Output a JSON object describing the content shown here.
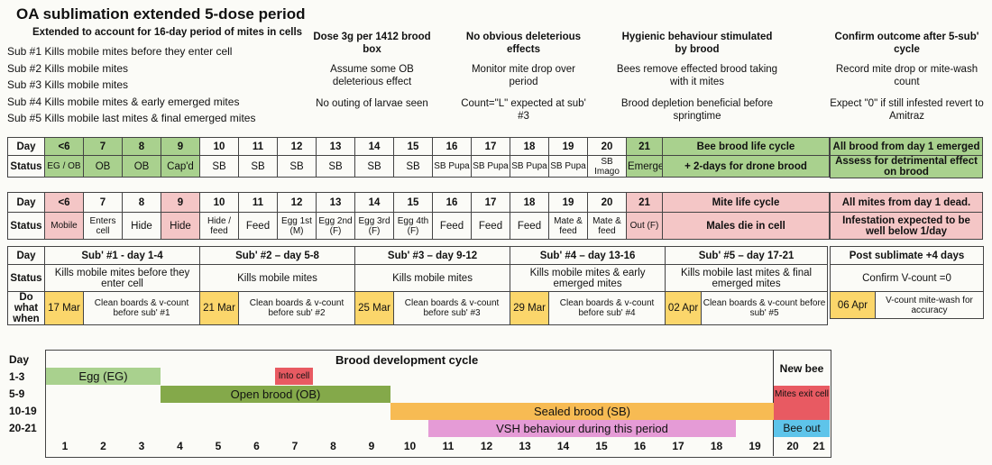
{
  "header": {
    "title": "OA sublimation extended 5-dose period",
    "subtitle": "Extended to account for 16-day period of mites in cells",
    "subs": [
      "Sub #1  Kills mobile mites before they enter cell",
      "Sub #2  Kills mobile mites",
      "Sub #3  Kills mobile mites",
      "Sub #4  Kills mobile mites & early emerged mites",
      "Sub #5  Kills mobile last mites & final emerged mites"
    ]
  },
  "notes": [
    {
      "heading": "Dose 3g per 1412 brood box",
      "lines": [
        "Assume some OB deleterious effect",
        "No outing of larvae seen"
      ]
    },
    {
      "heading": "No obvious deleterious effects",
      "lines": [
        "Monitor mite drop over period",
        "Count=\"L\" expected at sub' #3"
      ]
    },
    {
      "heading": "Hygienic behaviour stimulated by brood",
      "lines": [
        "Bees remove effected brood taking with it mites",
        "Brood depletion beneficial before springtime"
      ]
    },
    {
      "heading": "Confirm outcome after 5-sub' cycle",
      "lines": [
        "Record mite drop or mite-wash count",
        "Expect \"0\" if still infested revert to Amitraz"
      ]
    }
  ],
  "table1": {
    "day_label": "Day",
    "status_label": "Status",
    "days": [
      "<6",
      "7",
      "8",
      "9",
      "10",
      "11",
      "12",
      "13",
      "14",
      "15",
      "16",
      "17",
      "18",
      "19",
      "20",
      "21"
    ],
    "status": [
      "EG / OB",
      "OB",
      "OB",
      "Cap'd",
      "SB",
      "SB",
      "SB",
      "SB",
      "SB",
      "SB",
      "SB Pupa",
      "SB Pupa",
      "SB Pupa",
      "SB Pupa",
      "SB Imago",
      "Emerge"
    ],
    "right_title": "Bee brood life cycle",
    "right_sub": "+ 2-days for drone brood",
    "side_line1": "All brood from day 1 emerged",
    "side_line2": "Assess for detrimental effect on brood"
  },
  "table2": {
    "day_label": "Day",
    "status_label": "Status",
    "days": [
      "<6",
      "7",
      "8",
      "9",
      "10",
      "11",
      "12",
      "13",
      "14",
      "15",
      "16",
      "17",
      "18",
      "19",
      "20",
      "21"
    ],
    "status": [
      "Mobile",
      "Enters cell",
      "Hide",
      "Hide",
      "Hide / feed",
      "Feed",
      "Egg 1st (M)",
      "Egg 2nd (F)",
      "Egg 3rd (F)",
      "Egg 4th (F)",
      "Feed",
      "Feed",
      "Feed",
      "Mate & feed",
      "Mate & feed",
      "Out (F)"
    ],
    "right_title": "Mite life cycle",
    "right_sub": "Males die in cell",
    "side_line1": "All mites from day 1 dead.",
    "side_line2": "Infestation expected to be well below 1/day"
  },
  "table3": {
    "day_label": "Day",
    "status_label": "Status",
    "when_label": "Do what when",
    "subs": [
      {
        "day": "Sub' #1 - day 1-4",
        "status": "Kills mobile mites before they enter cell",
        "date": "17 Mar",
        "action": "Clean boards & v-count before sub' #1"
      },
      {
        "day": "Sub' #2 – day 5-8",
        "status": "Kills mobile mites",
        "date": "21 Mar",
        "action": "Clean boards & v-count before sub' #2"
      },
      {
        "day": "Sub' #3 – day 9-12",
        "status": "Kills mobile mites",
        "date": "25 Mar",
        "action": "Clean boards & v-count before sub' #3"
      },
      {
        "day": "Sub' #4 – day 13-16",
        "status": "Kills mobile mites & early emerged mites",
        "date": "29 Mar",
        "action": "Clean boards & v-count before sub' #4"
      },
      {
        "day": "Sub' #5 – day 17-21",
        "status": "Kills mobile last mites & final emerged mites",
        "date": "02 Apr",
        "action": "Clean boards & v-count before sub' #5"
      }
    ],
    "side": {
      "day": "Post sublimate +4 days",
      "status": "Confirm V-count =0",
      "date": "06 Apr",
      "action": "V-count mite-wash for accuracy"
    }
  },
  "brood": {
    "title": "Brood development cycle",
    "new_bee": "New bee",
    "day_label": "Day",
    "rows": [
      "1-3",
      "5-9",
      "10-19",
      "20-21"
    ],
    "axis": [
      "1",
      "2",
      "3",
      "4",
      "5",
      "6",
      "7",
      "8",
      "9",
      "10",
      "11",
      "12",
      "13",
      "14",
      "15",
      "16",
      "17",
      "18",
      "19",
      "20",
      "21"
    ],
    "bars": {
      "egg": "Egg (EG)",
      "into_cell": "Into cell",
      "open": "Open brood (OB)",
      "sealed": "Sealed brood (SB)",
      "vsh": "VSH behaviour during this period",
      "exit": "Mites exit cell",
      "out": "Bee out"
    },
    "colors": {
      "egg": "#a9d18e",
      "open": "#84a94a",
      "sealed": "#f7bb53",
      "vsh": "#e59bd6",
      "into": "#e85a62",
      "exit": "#e85a62",
      "out": "#5ec4ea"
    }
  }
}
